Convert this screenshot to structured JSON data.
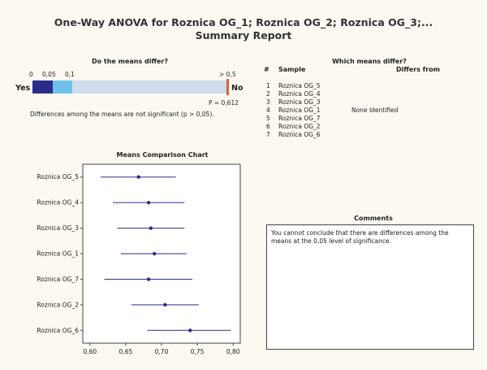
{
  "title": {
    "line1": "One-Way ANOVA for Roznica OG_1; Roznica OG_2; Roznica OG_3;...",
    "line2": "Summary Report"
  },
  "means_differ": {
    "heading": "Do the means differ?",
    "scale_labels": [
      "0",
      "0,05",
      "0,1",
      "> 0,5"
    ],
    "yes_label": "Yes",
    "no_label": "No",
    "p_value": 0.612,
    "p_label": "P = 0,612",
    "conclusion": "Differences among the means are not significant (p > 0,05).",
    "colors": {
      "dark": "#2b2c8a",
      "light": "#6fc0ea",
      "track": "#cfdcec",
      "marker": "#e0622a"
    }
  },
  "which_differ": {
    "heading": "Which means differ?",
    "col_num": "#",
    "col_sample": "Sample",
    "col_differs": "Differs from",
    "rows": [
      {
        "num": "1",
        "sample": "Roznica OG_5",
        "differs": ""
      },
      {
        "num": "2",
        "sample": "Roznica OG_4",
        "differs": ""
      },
      {
        "num": "3",
        "sample": "Roznica OG_3",
        "differs": ""
      },
      {
        "num": "4",
        "sample": "Roznica OG_1",
        "differs": "None Identified"
      },
      {
        "num": "5",
        "sample": "Roznica OG_7",
        "differs": ""
      },
      {
        "num": "6",
        "sample": "Roznica OG_2",
        "differs": ""
      },
      {
        "num": "7",
        "sample": "Roznica OG_6",
        "differs": ""
      }
    ]
  },
  "comments": {
    "heading": "Comments",
    "text": "You cannot conclude that there are differences among the means at the 0,05 level of significance."
  },
  "chart_data": {
    "type": "scatter",
    "title": "Means Comparison Chart",
    "categories": [
      "Roznica OG_5",
      "Roznica OG_4",
      "Roznica OG_3",
      "Roznica OG_1",
      "Roznica OG_7",
      "Roznica OG_2",
      "Roznica OG_6"
    ],
    "means": [
      0.668,
      0.682,
      0.685,
      0.69,
      0.682,
      0.705,
      0.74
    ],
    "lower": [
      0.615,
      0.632,
      0.638,
      0.643,
      0.62,
      0.658,
      0.68
    ],
    "upper": [
      0.72,
      0.732,
      0.732,
      0.735,
      0.743,
      0.752,
      0.797
    ],
    "xlim": [
      0.59,
      0.81
    ],
    "xticks": [
      0.6,
      0.65,
      0.7,
      0.75,
      0.8
    ],
    "xtick_labels": [
      "0,60",
      "0,65",
      "0,70",
      "0,75",
      "0,80"
    ],
    "grid": false,
    "colors": {
      "marker": "#2b2c8a",
      "interval": "#2b2c8a"
    }
  }
}
